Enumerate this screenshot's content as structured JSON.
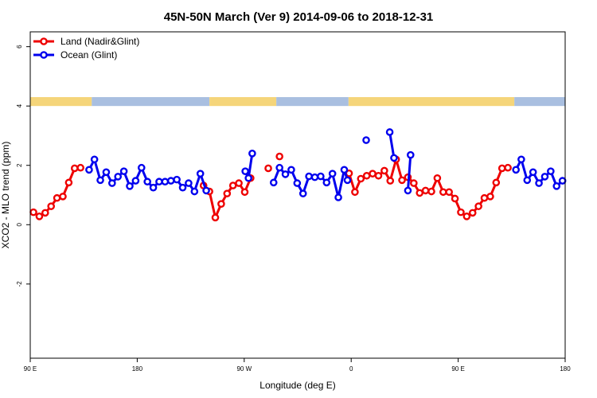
{
  "chart_data": {
    "type": "line",
    "title": "45N-50N March (Ver 9)   2014-09-06 to 2018-12-31",
    "xlabel": "Longitude (deg E)",
    "ylabel": "XCO2 - MLO trend (ppm)",
    "xlim": [
      0,
      100
    ],
    "ylim": [
      -4.5,
      6.5
    ],
    "x_ticks": [
      {
        "pos": 0,
        "label": "90 E"
      },
      {
        "pos": 20,
        "label": "180"
      },
      {
        "pos": 40,
        "label": "90 W"
      },
      {
        "pos": 60,
        "label": "0"
      },
      {
        "pos": 80,
        "label": "90 E"
      },
      {
        "pos": 100,
        "label": "180"
      }
    ],
    "y_ticks": [
      {
        "value": -2,
        "label": "-2"
      },
      {
        "value": 0,
        "label": "0"
      },
      {
        "value": 2,
        "label": "2"
      },
      {
        "value": 4,
        "label": "4"
      },
      {
        "value": 6,
        "label": "6"
      }
    ],
    "legend_position": "top-left",
    "land_band": {
      "y_bottom": 4.0,
      "y_top": 4.3,
      "land_color": "#f5d57a",
      "ocean_color": "#a9bfe0"
    },
    "series": [
      {
        "name": "Land (Nadir&Glint)",
        "color": "#ee0000",
        "segments": [
          [
            [
              0.6,
              0.42
            ],
            [
              1.7,
              0.28
            ],
            [
              2.8,
              0.4
            ],
            [
              3.9,
              0.62
            ],
            [
              5.0,
              0.9
            ],
            [
              6.1,
              0.95
            ],
            [
              7.2,
              1.42
            ],
            [
              8.3,
              1.9
            ],
            [
              9.4,
              1.92
            ]
          ],
          [
            [
              32.4,
              1.32
            ],
            [
              33.5,
              1.12
            ],
            [
              34.6,
              0.24
            ],
            [
              35.7,
              0.7
            ],
            [
              36.8,
              1.05
            ],
            [
              37.9,
              1.32
            ],
            [
              39.0,
              1.4
            ],
            [
              40.1,
              1.1
            ],
            [
              41.2,
              1.57
            ]
          ],
          [
            [
              44.5,
              1.9
            ]
          ],
          [
            [
              46.6,
              2.3
            ]
          ],
          [
            [
              59.6,
              1.73
            ],
            [
              60.7,
              1.1
            ],
            [
              61.8,
              1.55
            ],
            [
              62.9,
              1.65
            ],
            [
              64.0,
              1.72
            ],
            [
              65.1,
              1.65
            ],
            [
              66.2,
              1.82
            ],
            [
              67.3,
              1.48
            ],
            [
              68.4,
              2.2
            ],
            [
              69.5,
              1.5
            ],
            [
              70.6,
              1.6
            ],
            [
              71.7,
              1.4
            ],
            [
              72.8,
              1.07
            ],
            [
              73.9,
              1.15
            ],
            [
              75.0,
              1.12
            ],
            [
              76.1,
              1.57
            ],
            [
              77.2,
              1.1
            ],
            [
              78.3,
              1.1
            ],
            [
              79.4,
              0.88
            ],
            [
              80.5,
              0.42
            ],
            [
              81.6,
              0.28
            ],
            [
              82.7,
              0.4
            ],
            [
              83.8,
              0.62
            ],
            [
              84.9,
              0.9
            ],
            [
              86.0,
              0.95
            ],
            [
              87.1,
              1.42
            ],
            [
              88.2,
              1.9
            ],
            [
              89.3,
              1.92
            ]
          ]
        ]
      },
      {
        "name": "Ocean (Glint)",
        "color": "#0000ee",
        "segments": [
          [
            [
              11.0,
              1.85
            ],
            [
              12.0,
              2.2
            ],
            [
              13.1,
              1.5
            ],
            [
              14.2,
              1.77
            ],
            [
              15.3,
              1.4
            ],
            [
              16.4,
              1.62
            ],
            [
              17.5,
              1.8
            ],
            [
              18.6,
              1.3
            ],
            [
              19.7,
              1.48
            ],
            [
              20.8,
              1.92
            ],
            [
              21.9,
              1.45
            ],
            [
              23.0,
              1.25
            ],
            [
              24.1,
              1.45
            ],
            [
              25.2,
              1.45
            ],
            [
              26.3,
              1.48
            ],
            [
              27.4,
              1.52
            ],
            [
              28.5,
              1.25
            ],
            [
              29.6,
              1.4
            ],
            [
              30.7,
              1.12
            ],
            [
              31.8,
              1.72
            ],
            [
              32.9,
              1.15
            ]
          ],
          [
            [
              40.2,
              1.8
            ],
            [
              40.8,
              1.57
            ],
            [
              41.5,
              2.4
            ]
          ],
          [
            [
              45.5,
              1.42
            ],
            [
              46.6,
              1.92
            ],
            [
              47.7,
              1.7
            ],
            [
              48.8,
              1.85
            ],
            [
              49.9,
              1.4
            ],
            [
              51.0,
              1.05
            ],
            [
              52.1,
              1.63
            ],
            [
              53.2,
              1.6
            ],
            [
              54.3,
              1.63
            ],
            [
              55.4,
              1.42
            ],
            [
              56.5,
              1.72
            ],
            [
              57.6,
              0.92
            ],
            [
              58.7,
              1.85
            ],
            [
              59.3,
              1.5
            ]
          ],
          [
            [
              62.8,
              2.85
            ]
          ],
          [
            [
              67.2,
              3.12
            ],
            [
              68.0,
              2.25
            ]
          ],
          [
            [
              70.6,
              1.15
            ],
            [
              71.1,
              2.35
            ]
          ],
          [
            [
              90.8,
              1.85
            ],
            [
              91.8,
              2.2
            ],
            [
              92.9,
              1.5
            ],
            [
              94.0,
              1.77
            ],
            [
              95.1,
              1.4
            ],
            [
              96.2,
              1.62
            ],
            [
              97.3,
              1.8
            ],
            [
              98.4,
              1.3
            ],
            [
              99.5,
              1.48
            ]
          ]
        ]
      }
    ],
    "band_segments": [
      {
        "from": 0,
        "to": 11.5,
        "type": "land"
      },
      {
        "from": 11.5,
        "to": 33.5,
        "type": "ocean"
      },
      {
        "from": 33.5,
        "to": 46,
        "type": "land"
      },
      {
        "from": 46,
        "to": 59.5,
        "type": "ocean"
      },
      {
        "from": 59.5,
        "to": 90.5,
        "type": "land"
      },
      {
        "from": 90.5,
        "to": 100,
        "type": "ocean"
      }
    ]
  }
}
